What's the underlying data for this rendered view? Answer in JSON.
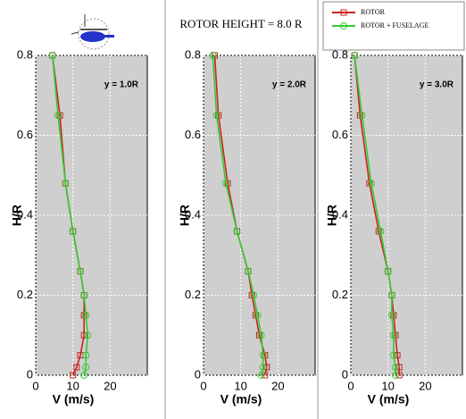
{
  "chart_data": {
    "type": "line",
    "title": "ROTOR HEIGHT = 8.0 R",
    "legend_position": "top-right",
    "grid": true,
    "series": [
      {
        "name": "ROTOR",
        "color": "#cc2020",
        "marker": "square"
      },
      {
        "name": "ROTOR + FUSELAGE",
        "color": "#33cc33",
        "marker": "circle"
      }
    ],
    "panels": [
      {
        "annotation": "y = 1.0R",
        "xlabel": "V (m/s)",
        "ylabel": "H/R",
        "xlim": [
          0,
          30
        ],
        "ylim": [
          0,
          0.8
        ],
        "xticks": [
          0,
          10,
          20
        ],
        "yticks": [
          0,
          0.2,
          0.4,
          0.6,
          0.8
        ],
        "lines": [
          {
            "x": [
              10,
              11,
              12,
              13,
              13,
              13,
              12,
              10,
              8,
              6.5,
              4.5
            ],
            "y": [
              0,
              0.02,
              0.05,
              0.1,
              0.15,
              0.2,
              0.26,
              0.36,
              0.48,
              0.65,
              0.8
            ]
          },
          {
            "x": [
              13,
              13.5,
              13.5,
              14,
              13.5,
              13,
              12,
              10,
              8,
              6,
              4.5
            ],
            "y": [
              0,
              0.02,
              0.05,
              0.1,
              0.15,
              0.2,
              0.26,
              0.36,
              0.48,
              0.65,
              0.8
            ]
          }
        ]
      },
      {
        "annotation": "y = 2.0R",
        "xlabel": "V (m/s)",
        "ylabel": "H/R",
        "xlim": [
          0,
          30
        ],
        "ylim": [
          0,
          0.8
        ],
        "xticks": [
          0,
          10,
          20
        ],
        "yticks": [
          0,
          0.2,
          0.4,
          0.6,
          0.8
        ],
        "lines": [
          {
            "x": [
              16.5,
              17,
              16.5,
              15,
              14,
              13,
              12,
              9,
              6.5,
              4,
              3
            ],
            "y": [
              0,
              0.02,
              0.05,
              0.1,
              0.15,
              0.2,
              0.26,
              0.36,
              0.48,
              0.65,
              0.8
            ]
          },
          {
            "x": [
              15.5,
              16,
              16,
              15.5,
              14.5,
              13.5,
              12,
              9,
              6,
              3.5,
              2.5
            ],
            "y": [
              0,
              0.02,
              0.05,
              0.1,
              0.15,
              0.2,
              0.26,
              0.36,
              0.48,
              0.65,
              0.8
            ]
          }
        ]
      },
      {
        "annotation": "y = 3.0R",
        "xlabel": "V (m/s)",
        "ylabel": "H/R",
        "xlim": [
          0,
          30
        ],
        "ylim": [
          0,
          0.8
        ],
        "xticks": [
          0,
          10,
          20
        ],
        "yticks": [
          0,
          0.2,
          0.4,
          0.6,
          0.8
        ],
        "lines": [
          {
            "x": [
              13,
              13,
              12.5,
              12,
              11.5,
              11,
              10,
              7.5,
              5,
              2.5,
              1
            ],
            "y": [
              0,
              0.02,
              0.05,
              0.1,
              0.15,
              0.2,
              0.26,
              0.36,
              0.48,
              0.65,
              0.8
            ]
          },
          {
            "x": [
              12,
              12,
              11.5,
              11.5,
              11,
              11,
              10,
              8,
              5.5,
              3,
              1
            ],
            "y": [
              0,
              0.02,
              0.05,
              0.1,
              0.15,
              0.2,
              0.26,
              0.36,
              0.48,
              0.65,
              0.8
            ]
          }
        ]
      }
    ]
  }
}
